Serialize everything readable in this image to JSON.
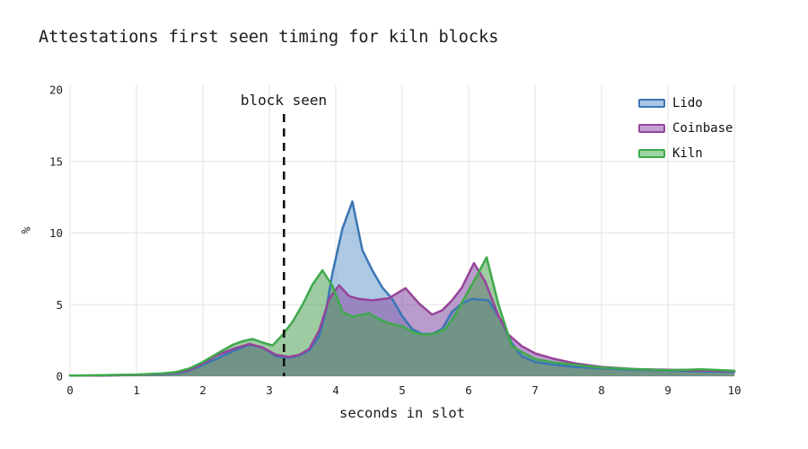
{
  "chart_data": {
    "type": "area",
    "title": "Attestations first seen timing for kiln blocks",
    "xlabel": "seconds in slot",
    "ylabel": "%",
    "xlim": [
      0,
      10
    ],
    "ylim": [
      0,
      20
    ],
    "x_ticks": [
      0,
      1,
      2,
      3,
      4,
      5,
      6,
      7,
      8,
      9,
      10
    ],
    "y_ticks": [
      0,
      5,
      10,
      15,
      20
    ],
    "grid": "on",
    "grid_color": "#e3e3e3",
    "legend_position": "top-right",
    "annotation": {
      "label": "block seen",
      "x": 3.22,
      "line_style": "dashed-vertical",
      "line_color": "#111111"
    },
    "series": [
      {
        "name": "Lido",
        "line": "#3a76b4",
        "fill": "#5b93c9",
        "fill_opacity": 0.5,
        "swatch": "#a9c6e4",
        "points": [
          [
            0,
            0.05
          ],
          [
            0.5,
            0.05
          ],
          [
            1,
            0.1
          ],
          [
            1.4,
            0.15
          ],
          [
            1.6,
            0.2
          ],
          [
            1.8,
            0.4
          ],
          [
            2,
            0.8
          ],
          [
            2.2,
            1.2
          ],
          [
            2.45,
            1.75
          ],
          [
            2.7,
            2.2
          ],
          [
            2.9,
            2.0
          ],
          [
            3.1,
            1.4
          ],
          [
            3.3,
            1.3
          ],
          [
            3.45,
            1.45
          ],
          [
            3.6,
            1.8
          ],
          [
            3.75,
            2.8
          ],
          [
            3.85,
            4.5
          ],
          [
            3.95,
            7.2
          ],
          [
            4.1,
            10.3
          ],
          [
            4.25,
            12.2
          ],
          [
            4.4,
            8.8
          ],
          [
            4.55,
            7.4
          ],
          [
            4.7,
            6.2
          ],
          [
            4.85,
            5.4
          ],
          [
            5.0,
            4.2
          ],
          [
            5.15,
            3.3
          ],
          [
            5.3,
            2.95
          ],
          [
            5.45,
            2.95
          ],
          [
            5.6,
            3.3
          ],
          [
            5.75,
            4.5
          ],
          [
            5.9,
            5.1
          ],
          [
            6.05,
            5.4
          ],
          [
            6.3,
            5.3
          ],
          [
            6.5,
            3.8
          ],
          [
            6.65,
            2.3
          ],
          [
            6.8,
            1.4
          ],
          [
            7,
            1.0
          ],
          [
            7.3,
            0.8
          ],
          [
            7.6,
            0.65
          ],
          [
            8,
            0.55
          ],
          [
            8.5,
            0.45
          ],
          [
            9,
            0.4
          ],
          [
            9.5,
            0.35
          ],
          [
            10,
            0.3
          ]
        ]
      },
      {
        "name": "Coinbase",
        "line": "#96449a",
        "fill": "#8c5aaa",
        "fill_opacity": 0.6,
        "swatch": "#c3a1d2",
        "points": [
          [
            0,
            0.05
          ],
          [
            0.5,
            0.05
          ],
          [
            1,
            0.1
          ],
          [
            1.4,
            0.18
          ],
          [
            1.6,
            0.25
          ],
          [
            1.8,
            0.45
          ],
          [
            2,
            0.9
          ],
          [
            2.2,
            1.45
          ],
          [
            2.45,
            1.9
          ],
          [
            2.7,
            2.25
          ],
          [
            2.9,
            2.0
          ],
          [
            3.1,
            1.5
          ],
          [
            3.3,
            1.35
          ],
          [
            3.45,
            1.5
          ],
          [
            3.6,
            1.9
          ],
          [
            3.75,
            3.2
          ],
          [
            3.9,
            5.4
          ],
          [
            4.05,
            6.35
          ],
          [
            4.2,
            5.6
          ],
          [
            4.35,
            5.4
          ],
          [
            4.55,
            5.3
          ],
          [
            4.8,
            5.45
          ],
          [
            5.05,
            6.15
          ],
          [
            5.25,
            5.1
          ],
          [
            5.45,
            4.3
          ],
          [
            5.6,
            4.6
          ],
          [
            5.75,
            5.3
          ],
          [
            5.9,
            6.2
          ],
          [
            6.08,
            7.9
          ],
          [
            6.25,
            6.6
          ],
          [
            6.45,
            4.2
          ],
          [
            6.6,
            2.9
          ],
          [
            6.8,
            2.1
          ],
          [
            7,
            1.6
          ],
          [
            7.3,
            1.2
          ],
          [
            7.6,
            0.9
          ],
          [
            8,
            0.65
          ],
          [
            8.5,
            0.5
          ],
          [
            9,
            0.45
          ],
          [
            9.5,
            0.4
          ],
          [
            10,
            0.35
          ]
        ]
      },
      {
        "name": "Kiln",
        "line": "#3fa94c",
        "fill": "#50a055",
        "fill_opacity": 0.55,
        "swatch": "#9ed5a3",
        "points": [
          [
            0,
            0.05
          ],
          [
            0.5,
            0.08
          ],
          [
            1,
            0.12
          ],
          [
            1.4,
            0.2
          ],
          [
            1.6,
            0.3
          ],
          [
            1.8,
            0.55
          ],
          [
            2,
            1.0
          ],
          [
            2.2,
            1.55
          ],
          [
            2.45,
            2.2
          ],
          [
            2.6,
            2.45
          ],
          [
            2.75,
            2.6
          ],
          [
            2.9,
            2.35
          ],
          [
            3.05,
            2.15
          ],
          [
            3.2,
            2.9
          ],
          [
            3.35,
            3.8
          ],
          [
            3.5,
            5.0
          ],
          [
            3.65,
            6.4
          ],
          [
            3.8,
            7.4
          ],
          [
            3.95,
            6.3
          ],
          [
            4.1,
            4.5
          ],
          [
            4.25,
            4.15
          ],
          [
            4.5,
            4.4
          ],
          [
            4.65,
            4.0
          ],
          [
            4.8,
            3.7
          ],
          [
            5.0,
            3.5
          ],
          [
            5.2,
            3.0
          ],
          [
            5.35,
            2.9
          ],
          [
            5.5,
            3.0
          ],
          [
            5.65,
            3.3
          ],
          [
            5.8,
            4.3
          ],
          [
            6.0,
            6.0
          ],
          [
            6.1,
            6.8
          ],
          [
            6.27,
            8.3
          ],
          [
            6.45,
            5.0
          ],
          [
            6.65,
            2.1
          ],
          [
            6.8,
            1.7
          ],
          [
            7,
            1.2
          ],
          [
            7.3,
            0.95
          ],
          [
            7.6,
            0.8
          ],
          [
            8,
            0.6
          ],
          [
            8.5,
            0.5
          ],
          [
            9,
            0.42
          ],
          [
            9.5,
            0.48
          ],
          [
            10,
            0.38
          ]
        ]
      }
    ]
  }
}
